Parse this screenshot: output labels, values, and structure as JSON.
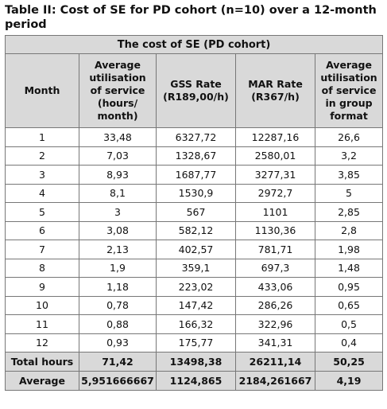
{
  "caption": {
    "line1": "Table II: Cost of SE for PD cohort (n=10) over a 12-month",
    "line2": "period"
  },
  "table": {
    "group_header": "The cost of SE (PD cohort)",
    "columns": [
      {
        "lines": [
          "Month"
        ]
      },
      {
        "lines": [
          "Average",
          "utilisation",
          "of service",
          "(hours/",
          "month)"
        ]
      },
      {
        "lines": [
          "GSS Rate",
          "(R189,00/h)"
        ]
      },
      {
        "lines": [
          "MAR Rate",
          "(R367/h)"
        ]
      },
      {
        "lines": [
          "Average",
          "utilisation",
          "of service",
          "in group",
          "format"
        ]
      }
    ],
    "rows": [
      [
        "1",
        "33,48",
        "6327,72",
        "12287,16",
        "26,6"
      ],
      [
        "2",
        "7,03",
        "1328,67",
        "2580,01",
        "3,2"
      ],
      [
        "3",
        "8,93",
        "1687,77",
        "3277,31",
        "3,85"
      ],
      [
        "4",
        "8,1",
        "1530,9",
        "2972,7",
        "5"
      ],
      [
        "5",
        "3",
        "567",
        "1101",
        "2,85"
      ],
      [
        "6",
        "3,08",
        "582,12",
        "1130,36",
        "2,8"
      ],
      [
        "7",
        "2,13",
        "402,57",
        "781,71",
        "1,98"
      ],
      [
        "8",
        "1,9",
        "359,1",
        "697,3",
        "1,48"
      ],
      [
        "9",
        "1,18",
        "223,02",
        "433,06",
        "0,95"
      ],
      [
        "10",
        "0,78",
        "147,42",
        "286,26",
        "0,65"
      ],
      [
        "11",
        "0,88",
        "166,32",
        "322,96",
        "0,5"
      ],
      [
        "12",
        "0,93",
        "175,77",
        "341,31",
        "0,4"
      ]
    ],
    "footer": [
      [
        "Total hours",
        "71,42",
        "13498,38",
        "26211,14",
        "50,25"
      ],
      [
        "Average",
        "5,951666667",
        "1124,865",
        "2184,261667",
        "4,19"
      ]
    ]
  }
}
